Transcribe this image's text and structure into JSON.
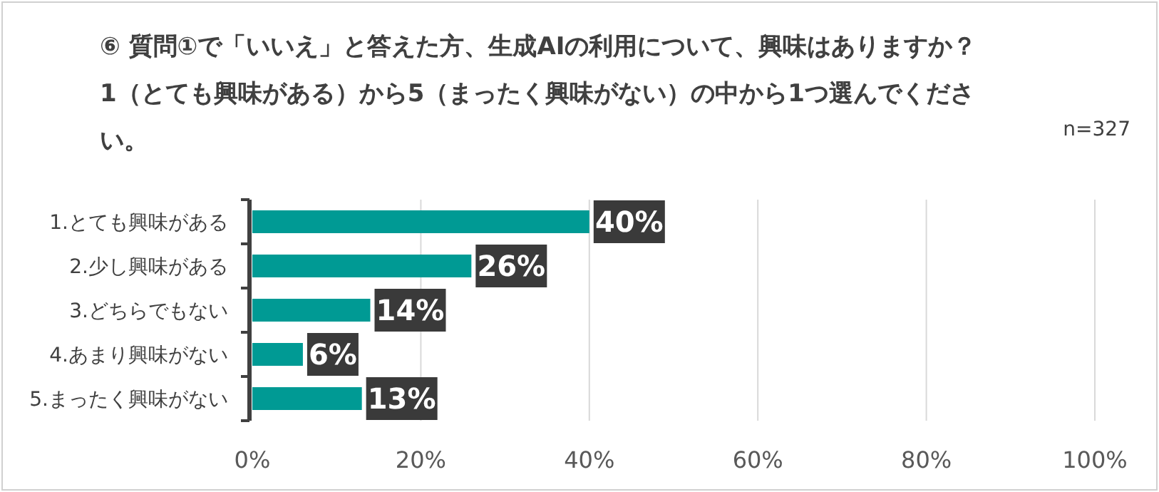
{
  "chart_data": {
    "type": "bar",
    "orientation": "horizontal",
    "title": "⑥ 質問①で「いいえ」と答えた方、生成AIの利用について、興味はありますか？",
    "subtitle": "1（とても興味がある）から5（まったく興味がない）の中から1つ選んでください。",
    "annotations": [
      "n=327"
    ],
    "categories": [
      "1.とても興味がある",
      "2.少し興味がある",
      "3.どちらでもない",
      "4.あまり興味がない",
      "5.まったく興味がない"
    ],
    "values": [
      40,
      26,
      14,
      6,
      13
    ],
    "value_labels": [
      "40%",
      "26%",
      "14%",
      "6%",
      "13%"
    ],
    "color": "#009a94",
    "xlim": [
      0,
      100
    ],
    "xticks": [
      {
        "value": 0,
        "label": "0%"
      },
      {
        "value": 20,
        "label": "20%"
      },
      {
        "value": 40,
        "label": "40%"
      },
      {
        "value": 60,
        "label": "60%"
      },
      {
        "value": 80,
        "label": "80%"
      },
      {
        "value": 100,
        "label": "100%"
      }
    ],
    "grid": "x"
  }
}
